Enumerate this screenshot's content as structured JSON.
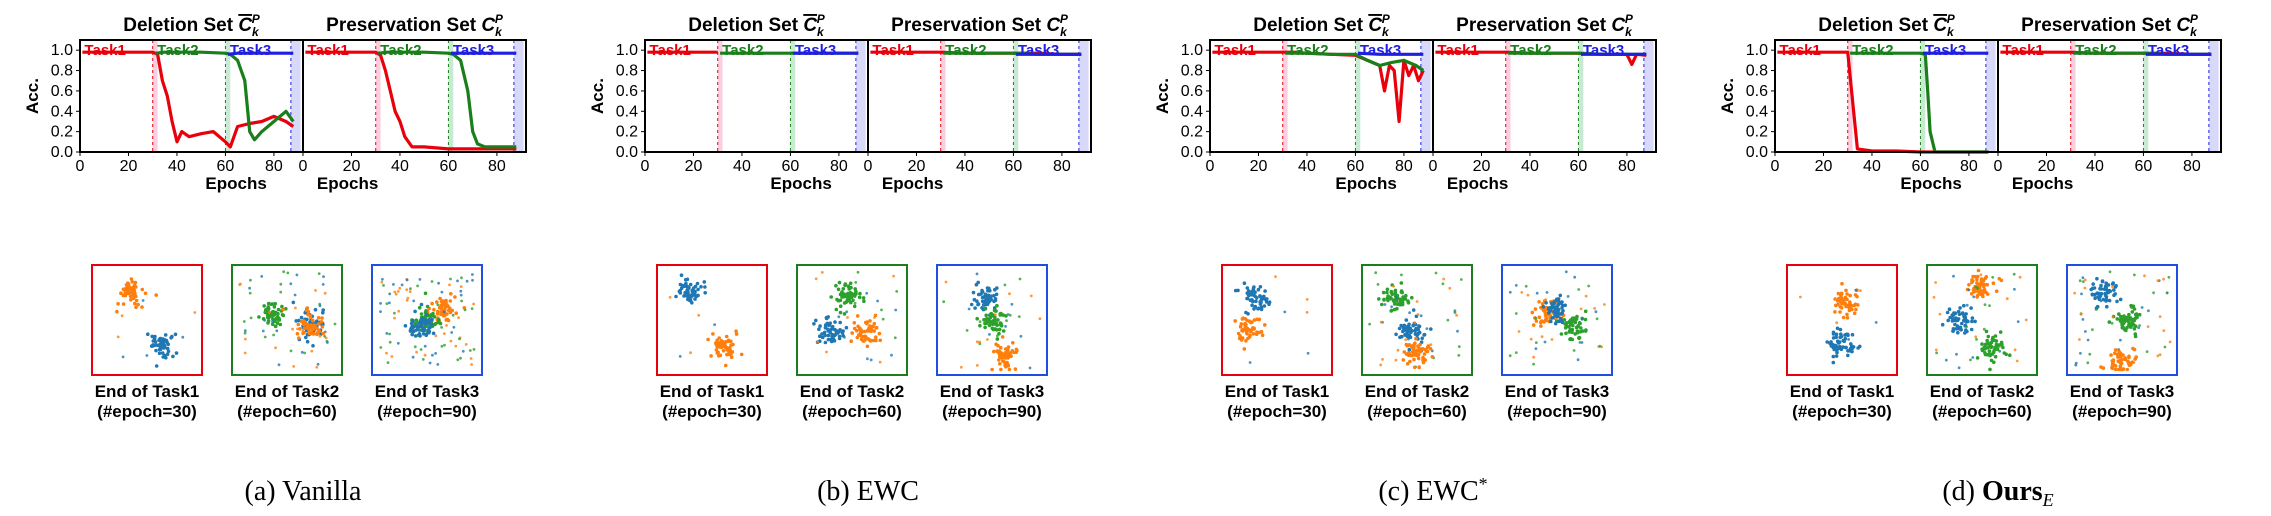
{
  "colors": {
    "task1": "#e8000b",
    "task2": "#1a7f1a",
    "task3": "#1f1fe0",
    "scatter_a": "#1f77b4",
    "scatter_b": "#ff7f0e",
    "scatter_c": "#2ca02c",
    "box_task1": "#e8000b",
    "box_task2": "#1a7f1a",
    "box_task3": "#1f4fe0"
  },
  "labels": {
    "deletion_title": "Deletion Set ",
    "preservation_title": "Preservation Set ",
    "set_symbol": "C",
    "sup": "P",
    "sub": "k",
    "ylabel": "Acc.",
    "xlabel": "Epochs",
    "task_labels": [
      "Task1",
      "Task2",
      "Task3"
    ]
  },
  "captions": [
    {
      "line1": "End of Task1",
      "line2": "(#epoch=30)"
    },
    {
      "line1": "End of Task2",
      "line2": "(#epoch=60)"
    },
    {
      "line1": "End of Task3",
      "line2": "(#epoch=90)"
    }
  ],
  "panels": [
    {
      "id": "a",
      "label": "(a) Vanilla"
    },
    {
      "id": "b",
      "label": "(b) EWC"
    },
    {
      "id": "c",
      "label": "(c) EWC*"
    },
    {
      "id": "d",
      "label": "(d) Ours_E"
    }
  ],
  "chart_data": [
    {
      "panel": "(a) Vanilla",
      "subplot": "Deletion Set",
      "type": "line",
      "xlim": [
        0,
        92
      ],
      "ylim": [
        0,
        1.1
      ],
      "xticks": [
        0,
        20,
        40,
        60,
        80
      ],
      "yticks": [
        0.0,
        0.2,
        0.4,
        0.6,
        0.8,
        1.0
      ],
      "series": [
        {
          "name": "Task1",
          "x": [
            1,
            10,
            20,
            30,
            32,
            34,
            36,
            38,
            40,
            42,
            45,
            50,
            55,
            60,
            62,
            65,
            70,
            75,
            80,
            85,
            88
          ],
          "y": [
            0.98,
            0.98,
            0.98,
            0.98,
            0.96,
            0.7,
            0.55,
            0.3,
            0.1,
            0.2,
            0.15,
            0.18,
            0.2,
            0.1,
            0.05,
            0.25,
            0.28,
            0.3,
            0.35,
            0.3,
            0.25
          ]
        },
        {
          "name": "Task2",
          "x": [
            31,
            35,
            40,
            50,
            60,
            62,
            65,
            68,
            70,
            72,
            75,
            80,
            85,
            88
          ],
          "y": [
            0.97,
            0.98,
            0.98,
            0.98,
            0.97,
            0.96,
            0.9,
            0.7,
            0.2,
            0.12,
            0.2,
            0.3,
            0.4,
            0.3
          ]
        },
        {
          "name": "Task3",
          "x": [
            61,
            65,
            70,
            75,
            80,
            85,
            88
          ],
          "y": [
            0.96,
            0.97,
            0.97,
            0.97,
            0.97,
            0.97,
            0.97
          ]
        }
      ]
    },
    {
      "panel": "(a) Vanilla",
      "subplot": "Preservation Set",
      "type": "line",
      "xlim": [
        0,
        92
      ],
      "ylim": [
        0,
        1.1
      ],
      "xticks": [
        0,
        20,
        40,
        60,
        80
      ],
      "series": [
        {
          "name": "Task1",
          "x": [
            1,
            10,
            20,
            30,
            32,
            34,
            36,
            38,
            40,
            42,
            45,
            50,
            55,
            60,
            65,
            70,
            80,
            88
          ],
          "y": [
            0.98,
            0.98,
            0.98,
            0.98,
            0.95,
            0.8,
            0.6,
            0.4,
            0.3,
            0.15,
            0.05,
            0.05,
            0.04,
            0.03,
            0.03,
            0.03,
            0.03,
            0.03
          ]
        },
        {
          "name": "Task2",
          "x": [
            31,
            35,
            40,
            50,
            60,
            62,
            65,
            68,
            70,
            72,
            75,
            80,
            85,
            88
          ],
          "y": [
            0.97,
            0.98,
            0.98,
            0.98,
            0.97,
            0.96,
            0.9,
            0.6,
            0.2,
            0.08,
            0.05,
            0.05,
            0.05,
            0.05
          ]
        },
        {
          "name": "Task3",
          "x": [
            61,
            65,
            70,
            75,
            80,
            85,
            88
          ],
          "y": [
            0.97,
            0.97,
            0.97,
            0.97,
            0.97,
            0.97,
            0.97
          ]
        }
      ]
    },
    {
      "panel": "(b) EWC",
      "subplot": "Deletion Set",
      "type": "line",
      "xlim": [
        0,
        92
      ],
      "ylim": [
        0,
        1.1
      ],
      "xticks": [
        0,
        20,
        40,
        60,
        80
      ],
      "series": [
        {
          "name": "Task1",
          "x": [
            1,
            10,
            20,
            30
          ],
          "y": [
            0.98,
            0.98,
            0.98,
            0.98
          ]
        },
        {
          "name": "Task2",
          "x": [
            31,
            40,
            50,
            60,
            70,
            80,
            88
          ],
          "y": [
            0.97,
            0.97,
            0.97,
            0.97,
            0.97,
            0.97,
            0.97
          ]
        },
        {
          "name": "Task3",
          "x": [
            61,
            70,
            80,
            88
          ],
          "y": [
            0.97,
            0.97,
            0.97,
            0.97
          ]
        }
      ]
    },
    {
      "panel": "(b) EWC",
      "subplot": "Preservation Set",
      "type": "line",
      "xlim": [
        0,
        92
      ],
      "ylim": [
        0,
        1.1
      ],
      "xticks": [
        0,
        20,
        40,
        60,
        80
      ],
      "series": [
        {
          "name": "Task1",
          "x": [
            1,
            10,
            20,
            30,
            40,
            50,
            60,
            70,
            80,
            88
          ],
          "y": [
            0.98,
            0.98,
            0.98,
            0.98,
            0.97,
            0.97,
            0.97,
            0.97,
            0.96,
            0.96
          ]
        },
        {
          "name": "Task2",
          "x": [
            31,
            40,
            50,
            60,
            70,
            80,
            88
          ],
          "y": [
            0.97,
            0.97,
            0.97,
            0.97,
            0.96,
            0.96,
            0.96
          ]
        },
        {
          "name": "Task3",
          "x": [
            61,
            70,
            80,
            88
          ],
          "y": [
            0.96,
            0.96,
            0.96,
            0.96
          ]
        }
      ]
    },
    {
      "panel": "(c) EWC*",
      "subplot": "Deletion Set",
      "type": "line",
      "xlim": [
        0,
        92
      ],
      "ylim": [
        0,
        1.1
      ],
      "xticks": [
        0,
        20,
        40,
        60,
        80
      ],
      "series": [
        {
          "name": "Task1",
          "x": [
            1,
            10,
            20,
            30,
            35,
            40,
            50,
            60,
            65,
            70,
            72,
            74,
            76,
            78,
            80,
            82,
            84,
            86,
            88
          ],
          "y": [
            0.98,
            0.98,
            0.98,
            0.98,
            0.98,
            0.97,
            0.96,
            0.95,
            0.9,
            0.85,
            0.6,
            0.85,
            0.8,
            0.3,
            0.9,
            0.75,
            0.85,
            0.7,
            0.8
          ]
        },
        {
          "name": "Task2",
          "x": [
            31,
            40,
            50,
            60,
            65,
            70,
            75,
            80,
            85,
            88
          ],
          "y": [
            0.97,
            0.97,
            0.96,
            0.96,
            0.9,
            0.85,
            0.88,
            0.9,
            0.85,
            0.8
          ]
        },
        {
          "name": "Task3",
          "x": [
            61,
            70,
            80,
            88
          ],
          "y": [
            0.97,
            0.96,
            0.96,
            0.96
          ]
        }
      ]
    },
    {
      "panel": "(c) EWC*",
      "subplot": "Preservation Set",
      "type": "line",
      "xlim": [
        0,
        92
      ],
      "ylim": [
        0,
        1.1
      ],
      "xticks": [
        0,
        20,
        40,
        60,
        80
      ],
      "series": [
        {
          "name": "Task1",
          "x": [
            1,
            10,
            20,
            30,
            40,
            50,
            60,
            70,
            80,
            82,
            84,
            88
          ],
          "y": [
            0.98,
            0.98,
            0.98,
            0.98,
            0.97,
            0.97,
            0.97,
            0.96,
            0.96,
            0.86,
            0.96,
            0.95
          ]
        },
        {
          "name": "Task2",
          "x": [
            31,
            40,
            50,
            60,
            70,
            80,
            88
          ],
          "y": [
            0.97,
            0.97,
            0.97,
            0.97,
            0.96,
            0.96,
            0.96
          ]
        },
        {
          "name": "Task3",
          "x": [
            61,
            70,
            80,
            88
          ],
          "y": [
            0.96,
            0.96,
            0.96,
            0.96
          ]
        }
      ]
    },
    {
      "panel": "(d) Ours_E",
      "subplot": "Deletion Set",
      "type": "line",
      "xlim": [
        0,
        92
      ],
      "ylim": [
        0,
        1.1
      ],
      "xticks": [
        0,
        20,
        40,
        60,
        80
      ],
      "series": [
        {
          "name": "Task1",
          "x": [
            1,
            10,
            20,
            30,
            32,
            34,
            40,
            50,
            60,
            70,
            80,
            88
          ],
          "y": [
            0.98,
            0.98,
            0.98,
            0.98,
            0.5,
            0.03,
            0.01,
            0.01,
            0.0,
            0.0,
            0.0,
            0.0
          ]
        },
        {
          "name": "Task2",
          "x": [
            31,
            40,
            50,
            60,
            62,
            63,
            64,
            66,
            70,
            80,
            88
          ],
          "y": [
            0.97,
            0.97,
            0.97,
            0.97,
            0.96,
            0.6,
            0.2,
            0.0,
            0.0,
            0.0,
            0.0
          ]
        },
        {
          "name": "Task3",
          "x": [
            61,
            70,
            80,
            88
          ],
          "y": [
            0.97,
            0.97,
            0.97,
            0.97
          ]
        }
      ]
    },
    {
      "panel": "(d) Ours_E",
      "subplot": "Preservation Set",
      "type": "line",
      "xlim": [
        0,
        92
      ],
      "ylim": [
        0,
        1.1
      ],
      "xticks": [
        0,
        20,
        40,
        60,
        80
      ],
      "series": [
        {
          "name": "Task1",
          "x": [
            1,
            10,
            20,
            30,
            40,
            50,
            60,
            70,
            80,
            88
          ],
          "y": [
            0.98,
            0.98,
            0.98,
            0.98,
            0.97,
            0.97,
            0.97,
            0.97,
            0.96,
            0.96
          ]
        },
        {
          "name": "Task2",
          "x": [
            31,
            40,
            50,
            60,
            70,
            80,
            88
          ],
          "y": [
            0.97,
            0.97,
            0.97,
            0.97,
            0.96,
            0.96,
            0.96
          ]
        },
        {
          "name": "Task3",
          "x": [
            61,
            70,
            80,
            88
          ],
          "y": [
            0.96,
            0.96,
            0.96,
            0.96
          ]
        }
      ]
    }
  ]
}
